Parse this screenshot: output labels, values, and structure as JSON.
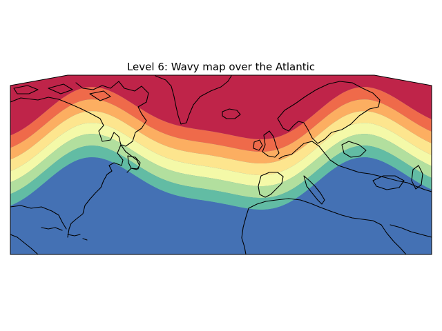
{
  "title": "Level 6: Wavy map over the Atlantic",
  "map": {
    "region": "North Atlantic",
    "projection": "curved-top map projection",
    "colormap": "spectral",
    "band_colors": [
      "#bf2449",
      "#ef6a4a",
      "#fcae61",
      "#fde58e",
      "#f4f9a8",
      "#b2df9e",
      "#62bca4",
      "#4471b4"
    ]
  }
}
